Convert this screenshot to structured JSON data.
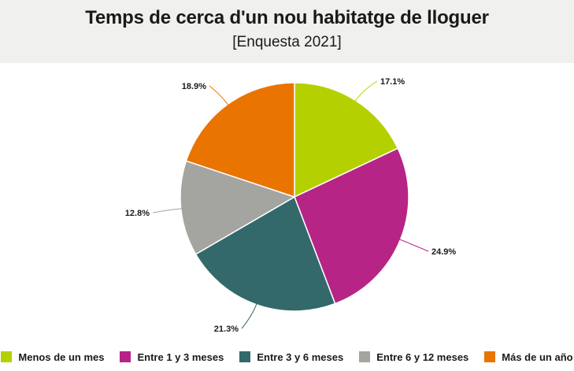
{
  "header": {
    "title": "Temps de cerca d'un nou habitatge de lloguer",
    "subtitle": "[Enquesta 2021]"
  },
  "chart_data": {
    "type": "pie",
    "title": "Temps de cerca d'un nou habitatge de lloguer",
    "subtitle": "[Enquesta 2021]",
    "legend_position": "bottom",
    "slices": [
      {
        "name": "Menos de un mes",
        "value": 17.1,
        "label": "17.1%",
        "color": "#b5d000"
      },
      {
        "name": "Entre 1 y 3 meses",
        "value": 24.9,
        "label": "24.9%",
        "color": "#b62486"
      },
      {
        "name": "Entre 3 y 6 meses",
        "value": 21.3,
        "label": "21.3%",
        "color": "#33696a"
      },
      {
        "name": "Entre 6 y 12 meses",
        "value": 12.8,
        "label": "12.8%",
        "color": "#a4a4a0"
      },
      {
        "name": "Más de un año",
        "value": 18.9,
        "label": "18.9%",
        "color": "#e97400"
      }
    ]
  }
}
